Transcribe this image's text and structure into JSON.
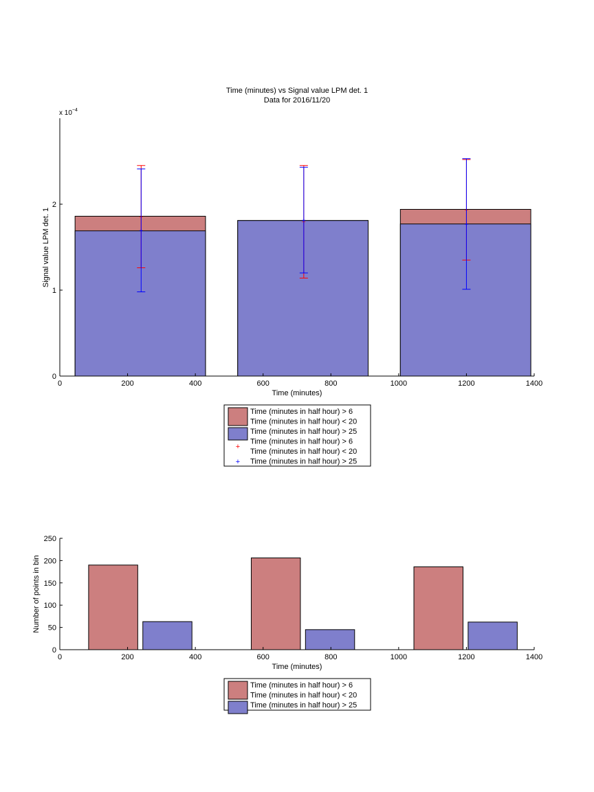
{
  "colors": {
    "red_fill": "#cc7f7f",
    "blue_fill": "#7f7fcc",
    "red_marker": "#ff0000",
    "blue_marker": "#0000ff",
    "axis": "#000000",
    "background": "#ffffff"
  },
  "chart_data": [
    {
      "type": "bar",
      "title": "Time (minutes) vs Signal value LPM det. 1",
      "subtitle": "Data for 2016/11/20",
      "xlabel": "Time (minutes)",
      "ylabel": "Signal value LPM det. 1",
      "y_exponent_label": "x 10",
      "y_exponent_power": "−4",
      "xlim": [
        0,
        1400
      ],
      "ylim": [
        0,
        3
      ],
      "y_scale_note": "values in units of 1e-4",
      "x_ticks": [
        0,
        200,
        400,
        600,
        800,
        1000,
        1200,
        1400
      ],
      "x_tick_labels": [
        "0",
        "200",
        "400",
        "600",
        "800",
        "1000",
        "1200",
        "1400"
      ],
      "y_ticks": [
        0,
        1,
        2
      ],
      "y_tick_labels": [
        "0",
        "1",
        "2"
      ],
      "grid": false,
      "legend_position": "below-center",
      "bars": [
        {
          "x_start": 45,
          "x_end": 430,
          "red_value": 1.86,
          "blue_value": 1.69
        },
        {
          "x_start": 525,
          "x_end": 910,
          "red_value": 1.81,
          "blue_value": 1.81
        },
        {
          "x_start": 1005,
          "x_end": 1390,
          "red_value": 1.94,
          "blue_value": 1.77
        }
      ],
      "error_bars": [
        {
          "x": 240,
          "red_low": 1.26,
          "red_high": 2.45,
          "blue_low": 0.98,
          "blue_high": 2.41
        },
        {
          "x": 720,
          "red_low": 1.14,
          "red_high": 2.45,
          "blue_low": 1.2,
          "blue_high": 2.43
        },
        {
          "x": 1200,
          "red_low": 1.35,
          "red_high": 2.52,
          "blue_low": 1.01,
          "blue_high": 2.53
        }
      ],
      "legend": [
        {
          "kind": "patch",
          "color": "red",
          "lines": [
            "Time (minutes in half hour) > 6",
            "Time (minutes in half hour) < 20"
          ]
        },
        {
          "kind": "patch",
          "color": "blue",
          "lines": [
            "Time (minutes in half hour) > 25"
          ]
        },
        {
          "kind": "marker",
          "color": "red",
          "lines": [
            "Time (minutes in half hour) > 6",
            "Time (minutes in half hour) < 20"
          ]
        },
        {
          "kind": "marker",
          "color": "blue",
          "lines": [
            "Time (minutes in half hour) > 25"
          ]
        }
      ]
    },
    {
      "type": "bar",
      "title": "",
      "xlabel": "Time (minutes)",
      "ylabel": "Number of points in bin",
      "xlim": [
        0,
        1400
      ],
      "ylim": [
        0,
        250
      ],
      "x_ticks": [
        0,
        200,
        400,
        600,
        800,
        1000,
        1200,
        1400
      ],
      "x_tick_labels": [
        "0",
        "200",
        "400",
        "600",
        "800",
        "1000",
        "1200",
        "1400"
      ],
      "y_ticks": [
        0,
        50,
        100,
        150,
        200,
        250
      ],
      "y_tick_labels": [
        "0",
        "50",
        "100",
        "150",
        "200",
        "250"
      ],
      "grid": false,
      "legend_position": "below-center",
      "series": [
        {
          "name": "Time (minutes in half hour) > 6 Time (minutes in half hour) < 20",
          "color": "red",
          "bars": [
            {
              "x_start": 85,
              "x_end": 230,
              "value": 190
            },
            {
              "x_start": 565,
              "x_end": 710,
              "value": 206
            },
            {
              "x_start": 1045,
              "x_end": 1190,
              "value": 186
            }
          ]
        },
        {
          "name": "Time (minutes in half hour) > 25",
          "color": "blue",
          "bars": [
            {
              "x_start": 245,
              "x_end": 390,
              "value": 63
            },
            {
              "x_start": 725,
              "x_end": 870,
              "value": 45
            },
            {
              "x_start": 1205,
              "x_end": 1350,
              "value": 62
            }
          ]
        }
      ],
      "legend": [
        {
          "kind": "patch",
          "color": "red",
          "lines": [
            "Time (minutes in half hour) > 6",
            "Time (minutes in half hour) < 20"
          ]
        },
        {
          "kind": "patch",
          "color": "blue",
          "lines": [
            "Time (minutes in half hour) > 25"
          ]
        }
      ]
    }
  ]
}
